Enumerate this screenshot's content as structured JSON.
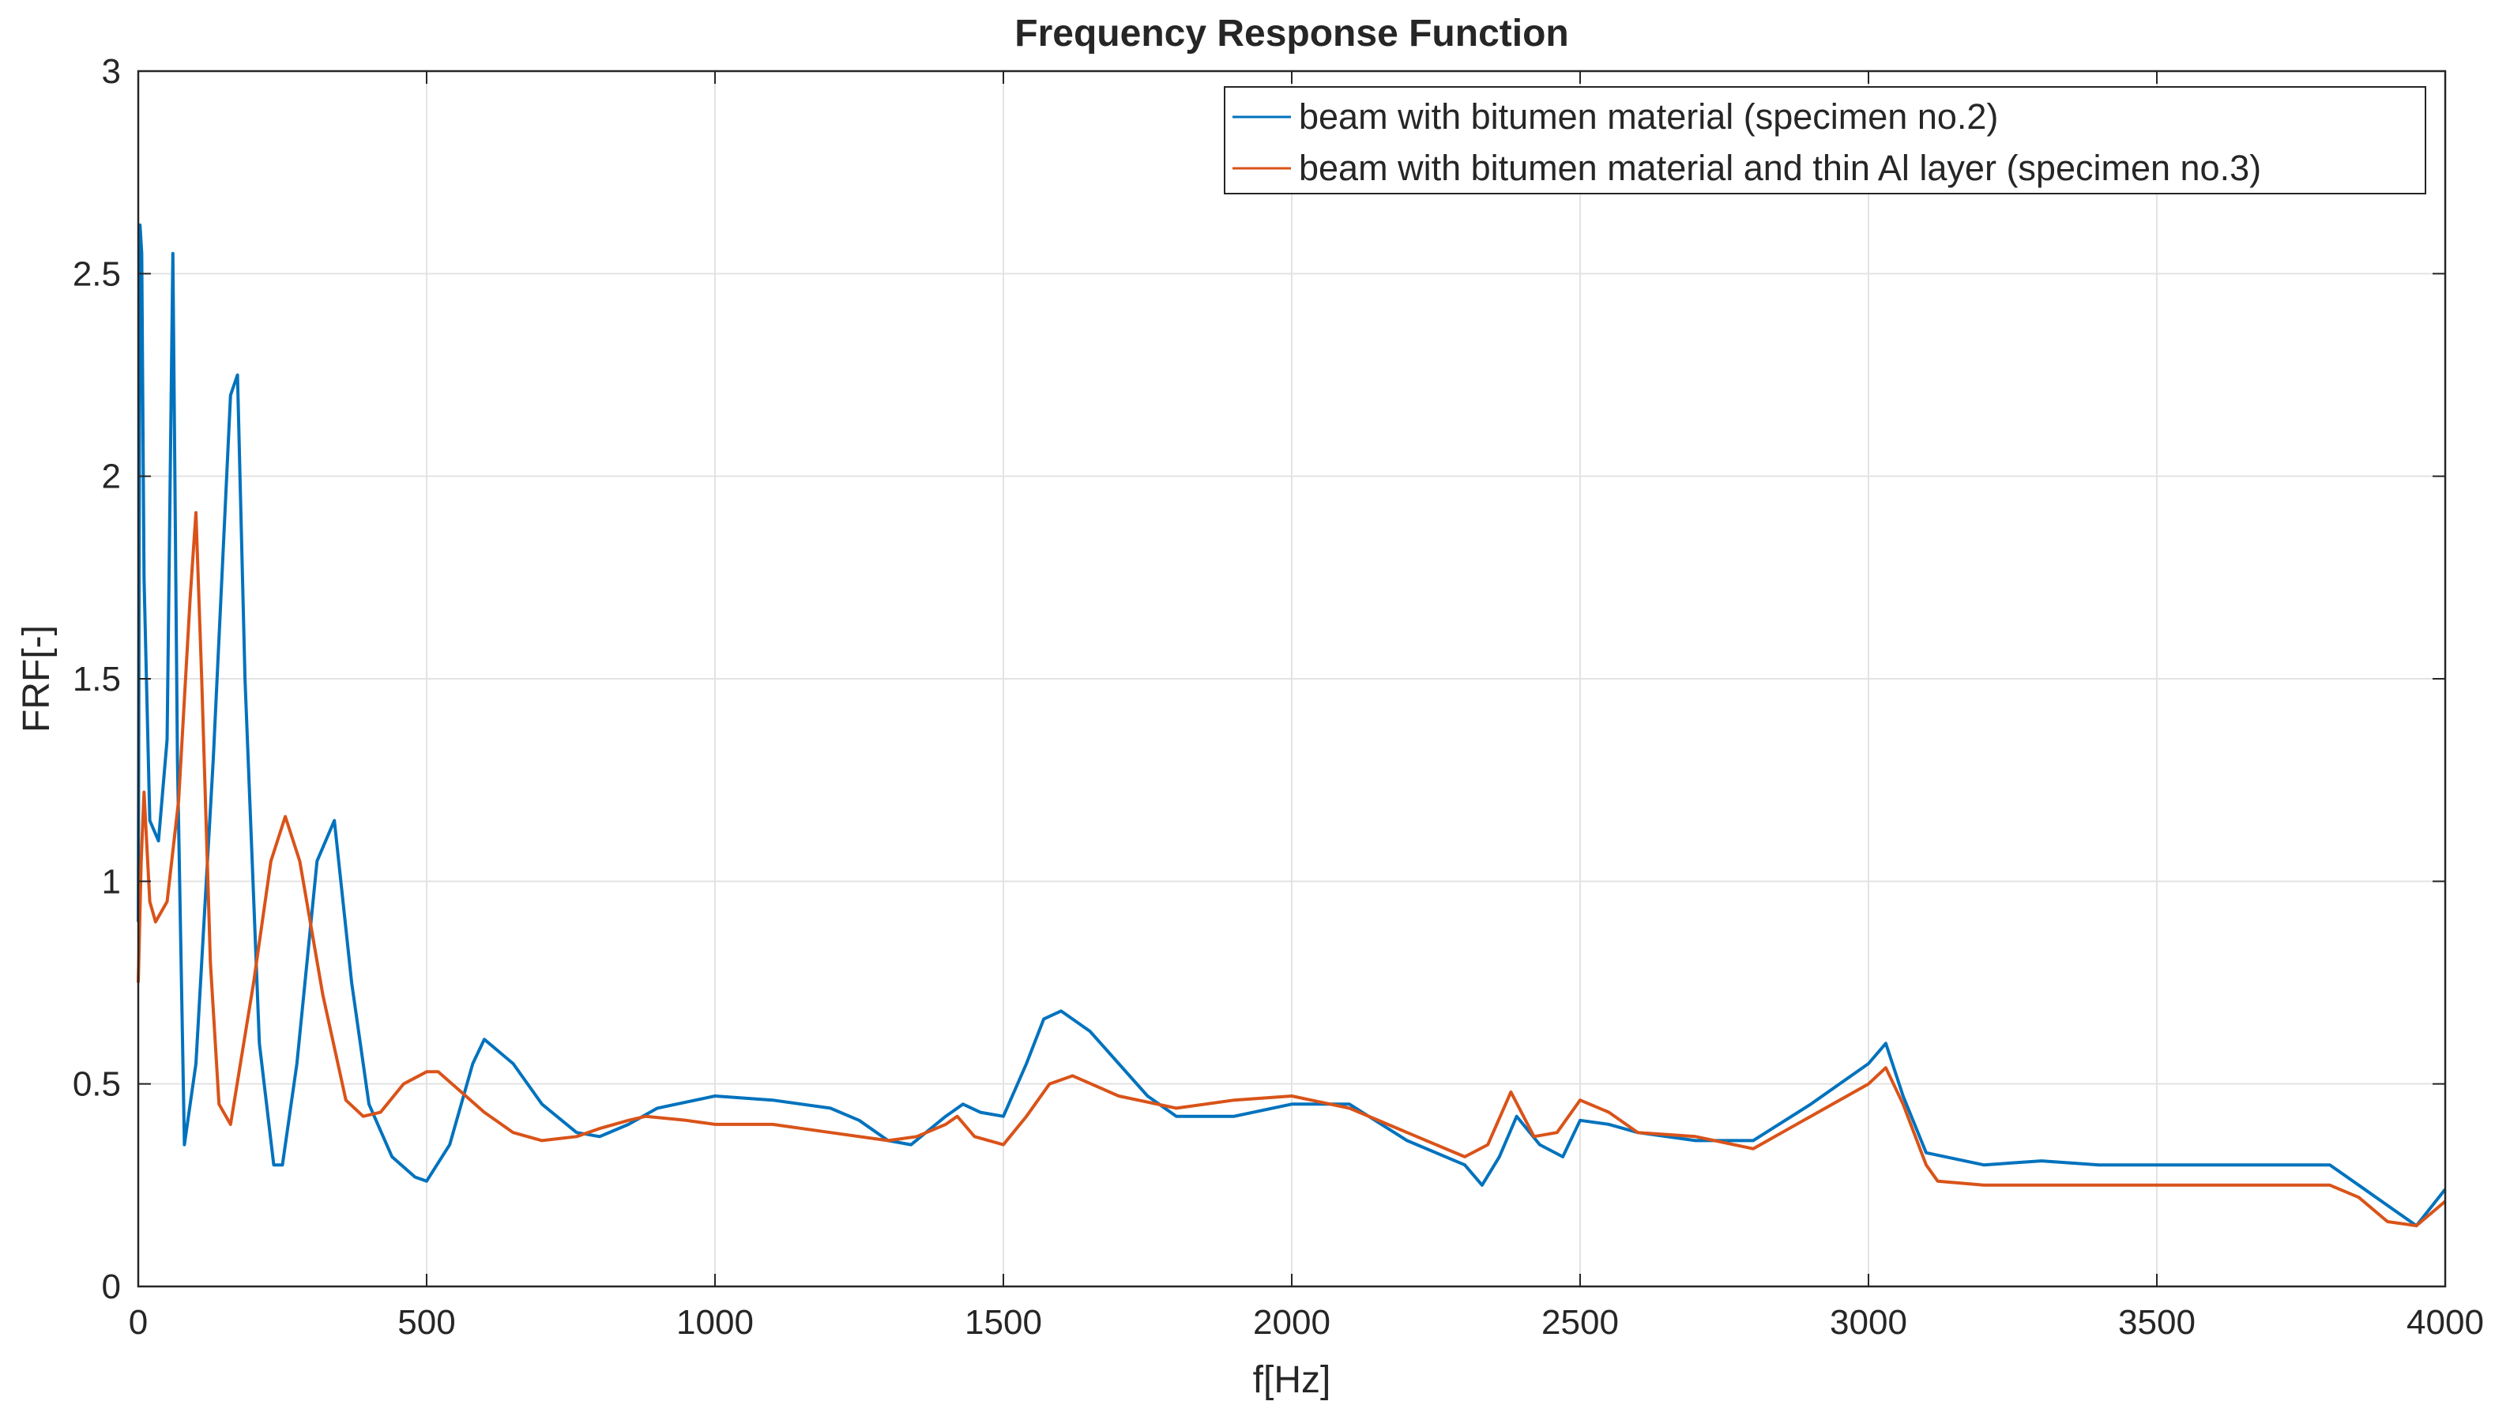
{
  "chart_data": {
    "type": "line",
    "title": "Frequency Response Function",
    "xlabel": "f[Hz]",
    "ylabel": "FRF[-]",
    "xlim": [
      0,
      4000
    ],
    "ylim": [
      0,
      3
    ],
    "grid": true,
    "legend_position": "top-right",
    "xticks": [
      0,
      500,
      1000,
      1500,
      2000,
      2500,
      3000,
      3500,
      4000
    ],
    "xtick_labels": [
      "0",
      "500",
      "1000",
      "1500",
      "2000",
      "2500",
      "3000",
      "3500",
      "4000"
    ],
    "yticks": [
      0,
      0.5,
      1,
      1.5,
      2,
      2.5,
      3
    ],
    "ytick_labels": [
      "0",
      "0.5",
      "1",
      "1.5",
      "2",
      "2.5",
      "3"
    ],
    "series": [
      {
        "name": "beam with bitumen material (specimen no.2)",
        "color": "#0072BD",
        "x": [
          0,
          3,
          6,
          10,
          20,
          35,
          50,
          60,
          68,
          80,
          100,
          130,
          160,
          172,
          185,
          210,
          235,
          250,
          275,
          310,
          340,
          370,
          400,
          440,
          480,
          500,
          540,
          580,
          600,
          650,
          700,
          760,
          800,
          850,
          900,
          1000,
          1100,
          1200,
          1250,
          1300,
          1340,
          1400,
          1430,
          1460,
          1500,
          1540,
          1570,
          1600,
          1650,
          1700,
          1750,
          1800,
          1900,
          2000,
          2100,
          2200,
          2300,
          2330,
          2360,
          2390,
          2430,
          2470,
          2500,
          2550,
          2600,
          2700,
          2800,
          2900,
          3000,
          3030,
          3060,
          3100,
          3200,
          3300,
          3400,
          3500,
          3600,
          3700,
          3800,
          3850,
          3900,
          3950,
          4000
        ],
        "y": [
          0.9,
          2.62,
          2.55,
          1.75,
          1.15,
          1.1,
          1.35,
          2.55,
          1.3,
          0.35,
          0.55,
          1.3,
          2.2,
          2.25,
          1.5,
          0.6,
          0.3,
          0.3,
          0.55,
          1.05,
          1.15,
          0.75,
          0.45,
          0.32,
          0.27,
          0.26,
          0.35,
          0.55,
          0.61,
          0.55,
          0.45,
          0.38,
          0.37,
          0.4,
          0.44,
          0.47,
          0.46,
          0.44,
          0.41,
          0.36,
          0.35,
          0.42,
          0.45,
          0.43,
          0.42,
          0.55,
          0.66,
          0.68,
          0.63,
          0.55,
          0.47,
          0.42,
          0.42,
          0.45,
          0.45,
          0.36,
          0.3,
          0.25,
          0.32,
          0.42,
          0.35,
          0.32,
          0.41,
          0.4,
          0.38,
          0.36,
          0.36,
          0.45,
          0.55,
          0.6,
          0.47,
          0.33,
          0.3,
          0.31,
          0.3,
          0.3,
          0.3,
          0.3,
          0.3,
          0.25,
          0.2,
          0.15,
          0.24
        ]
      },
      {
        "name": "beam with bitumen material and thin Al layer (specimen no.3)",
        "color": "#D95319",
        "x": [
          0,
          5,
          10,
          20,
          30,
          50,
          70,
          90,
          100,
          110,
          125,
          140,
          160,
          200,
          230,
          255,
          280,
          320,
          360,
          390,
          420,
          460,
          500,
          520,
          560,
          600,
          650,
          700,
          760,
          800,
          850,
          880,
          950,
          1000,
          1100,
          1200,
          1300,
          1350,
          1400,
          1420,
          1450,
          1500,
          1540,
          1580,
          1620,
          1700,
          1800,
          1900,
          2000,
          2100,
          2200,
          2300,
          2340,
          2380,
          2420,
          2460,
          2500,
          2550,
          2600,
          2700,
          2800,
          2900,
          3000,
          3030,
          3060,
          3100,
          3120,
          3200,
          3300,
          3400,
          3500,
          3600,
          3700,
          3800,
          3850,
          3900,
          3950,
          4000
        ],
        "y": [
          0.75,
          1.05,
          1.22,
          0.95,
          0.9,
          0.95,
          1.2,
          1.7,
          1.91,
          1.5,
          0.8,
          0.45,
          0.4,
          0.75,
          1.05,
          1.16,
          1.05,
          0.72,
          0.46,
          0.42,
          0.43,
          0.5,
          0.53,
          0.53,
          0.48,
          0.43,
          0.38,
          0.36,
          0.37,
          0.39,
          0.41,
          0.42,
          0.41,
          0.4,
          0.4,
          0.38,
          0.36,
          0.37,
          0.4,
          0.42,
          0.37,
          0.35,
          0.42,
          0.5,
          0.52,
          0.47,
          0.44,
          0.46,
          0.47,
          0.44,
          0.38,
          0.32,
          0.35,
          0.48,
          0.37,
          0.38,
          0.46,
          0.43,
          0.38,
          0.37,
          0.34,
          0.42,
          0.5,
          0.54,
          0.45,
          0.3,
          0.26,
          0.25,
          0.25,
          0.25,
          0.25,
          0.25,
          0.25,
          0.25,
          0.22,
          0.16,
          0.15,
          0.21
        ]
      }
    ]
  }
}
